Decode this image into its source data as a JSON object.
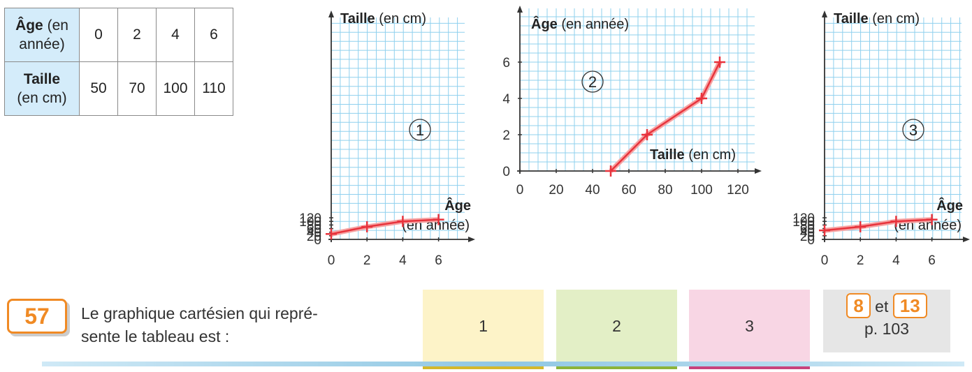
{
  "table": {
    "row1_head_bold": "Âge",
    "row1_head_rest": " (en année)",
    "row1_values": [
      "0",
      "2",
      "4",
      "6"
    ],
    "row2_head_bold": "Taille",
    "row2_head_rest": "(en cm)",
    "row2_values": [
      "50",
      "70",
      "100",
      "110"
    ]
  },
  "chart_data": [
    {
      "type": "line",
      "number_label": "1",
      "x": [
        0,
        2,
        4,
        6
      ],
      "y": [
        30,
        70,
        100,
        110
      ],
      "xlabel_bold": "Âge",
      "xlabel_unit": "(en année)",
      "ylabel_bold": "Taille",
      "ylabel_unit": " (en cm)",
      "xlim": [
        0,
        8
      ],
      "ylim": [
        0,
        120
      ],
      "xticks": [
        "0",
        "2",
        "4",
        "6"
      ],
      "yticks": [
        "0",
        "20",
        "40",
        "60",
        "80",
        "100",
        "120"
      ],
      "grid": true,
      "line_color": "#e8333c"
    },
    {
      "type": "line",
      "number_label": "2",
      "x": [
        50,
        70,
        100,
        110
      ],
      "y": [
        0,
        2,
        4,
        6
      ],
      "xlabel_bold": "Taille",
      "xlabel_unit": " (en cm)",
      "ylabel_bold": "Âge",
      "ylabel_unit": " (en année)",
      "xlim": [
        0,
        130
      ],
      "ylim": [
        0,
        8
      ],
      "xticks": [
        "0",
        "20",
        "40",
        "60",
        "80",
        "100",
        "120"
      ],
      "yticks": [
        "0",
        "2",
        "4",
        "6"
      ],
      "grid": true,
      "line_color": "#e8333c"
    },
    {
      "type": "line",
      "number_label": "3",
      "x": [
        0,
        2,
        4,
        6
      ],
      "y": [
        50,
        70,
        100,
        110
      ],
      "xlabel_bold": "Âge",
      "xlabel_unit": "(en année)",
      "ylabel_bold": "Taille",
      "ylabel_unit": " (en cm)",
      "xlim": [
        0,
        8
      ],
      "ylim": [
        0,
        120
      ],
      "xticks": [
        "0",
        "2",
        "4",
        "6"
      ],
      "yticks": [
        "0",
        "20",
        "40",
        "60",
        "80",
        "100",
        "120"
      ],
      "grid": true,
      "line_color": "#e8333c"
    }
  ],
  "exercise": {
    "number": "57",
    "question_line1": "Le graphique cartésien qui repré-",
    "question_line2": "sente le tableau est :",
    "choices": [
      {
        "label": "1",
        "bg": "#fdf3c8",
        "bar": "#d4b82a"
      },
      {
        "label": "2",
        "bg": "#e3efc6",
        "bar": "#8cb43a"
      },
      {
        "label": "3",
        "bg": "#f8d6e4",
        "bar": "#c8427c"
      }
    ],
    "ref_num1": "8",
    "ref_and": "et",
    "ref_num2": "13",
    "ref_page": "p. 103"
  }
}
